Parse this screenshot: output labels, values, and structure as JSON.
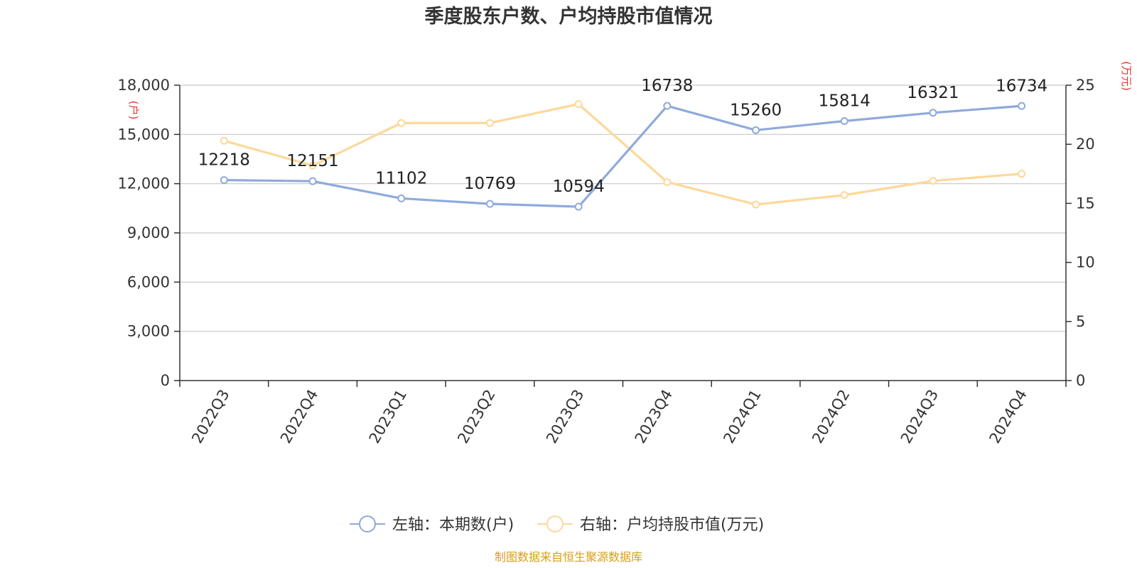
{
  "chart_data": {
    "type": "line",
    "title": "季度股东户数、户均持股市值情况",
    "categories": [
      "2022Q3",
      "2022Q4",
      "2023Q1",
      "2023Q2",
      "2023Q3",
      "2023Q4",
      "2024Q1",
      "2024Q2",
      "2024Q3",
      "2024Q4"
    ],
    "left_axis": {
      "unit": "(户)",
      "ylim": [
        0,
        18000
      ],
      "ticks": [
        0,
        3000,
        6000,
        9000,
        12000,
        15000,
        18000
      ],
      "tick_labels": [
        "0",
        "3,000",
        "6,000",
        "9,000",
        "12,000",
        "15,000",
        "18,000"
      ]
    },
    "right_axis": {
      "unit": "(万元)",
      "ylim": [
        0,
        25
      ],
      "ticks": [
        0,
        5,
        10,
        15,
        20,
        25
      ],
      "tick_labels": [
        "0",
        "5",
        "10",
        "15",
        "20",
        "25"
      ]
    },
    "series": [
      {
        "name": "左轴：本期数(户)",
        "axis": "left",
        "color": "#8faadc",
        "values": [
          12218,
          12151,
          11102,
          10769,
          10594,
          16738,
          15260,
          15814,
          16321,
          16734
        ],
        "labels": [
          "12218",
          "12151",
          "11102",
          "10769",
          "10594",
          "16738",
          "15260",
          "15814",
          "16321",
          "16734"
        ]
      },
      {
        "name": "右轴：户均持股市值(万元)",
        "axis": "right",
        "color": "#fdd89a",
        "values": [
          20.3,
          18.2,
          21.8,
          21.8,
          23.4,
          16.8,
          14.9,
          15.7,
          16.9,
          17.5
        ]
      }
    ],
    "grid": true,
    "legend_position": "bottom"
  },
  "source": "制图数据来自恒生聚源数据库"
}
